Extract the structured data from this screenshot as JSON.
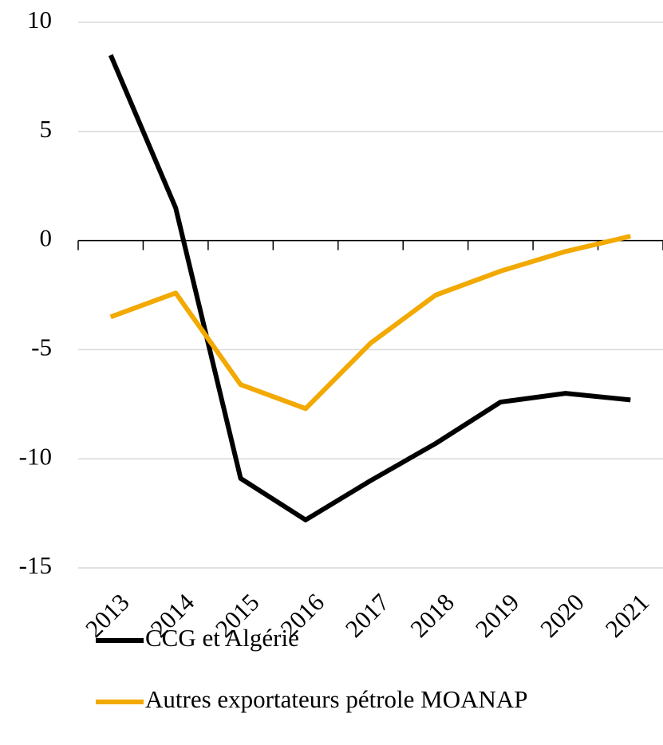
{
  "chart_data": {
    "type": "line",
    "categories": [
      "2013",
      "2014",
      "2015",
      "2016",
      "2017",
      "2018",
      "2019",
      "2020",
      "2021"
    ],
    "series": [
      {
        "name": "CCG et Algérie",
        "color": "#000000",
        "values": [
          8.5,
          1.5,
          -10.9,
          -12.8,
          -11.0,
          -9.3,
          -7.4,
          -7.0,
          -7.3
        ]
      },
      {
        "name": "Autres exportateurs pétrole MOANAP",
        "color": "#f2a900",
        "values": [
          -3.5,
          -2.4,
          -6.6,
          -7.7,
          -4.7,
          -2.5,
          -1.4,
          -0.5,
          0.2
        ]
      }
    ],
    "ylim": [
      -15,
      10
    ],
    "yticks": [
      -15,
      -10,
      -5,
      0,
      5,
      10
    ],
    "grid": true,
    "legend": "bottom"
  }
}
